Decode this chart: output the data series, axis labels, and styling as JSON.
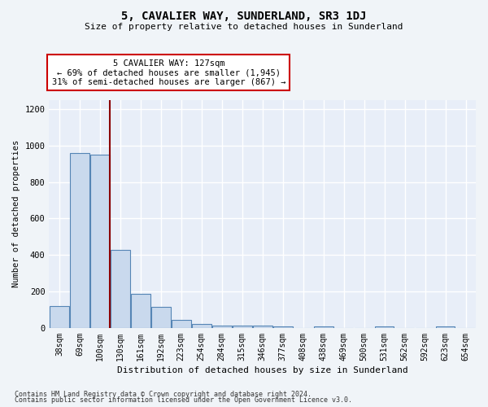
{
  "title": "5, CAVALIER WAY, SUNDERLAND, SR3 1DJ",
  "subtitle": "Size of property relative to detached houses in Sunderland",
  "xlabel": "Distribution of detached houses by size in Sunderland",
  "ylabel": "Number of detached properties",
  "footer_line1": "Contains HM Land Registry data © Crown copyright and database right 2024.",
  "footer_line2": "Contains public sector information licensed under the Open Government Licence v3.0.",
  "annotation_line1": "5 CAVALIER WAY: 127sqm",
  "annotation_line2": "← 69% of detached houses are smaller (1,945)",
  "annotation_line3": "31% of semi-detached houses are larger (867) →",
  "bar_color": "#c9d9ed",
  "bar_edge_color": "#5585b5",
  "vline_color": "#8b0000",
  "background_color": "#e8eef8",
  "grid_color": "#ffffff",
  "categories": [
    "38sqm",
    "69sqm",
    "100sqm",
    "130sqm",
    "161sqm",
    "192sqm",
    "223sqm",
    "254sqm",
    "284sqm",
    "315sqm",
    "346sqm",
    "377sqm",
    "408sqm",
    "438sqm",
    "469sqm",
    "500sqm",
    "531sqm",
    "562sqm",
    "592sqm",
    "623sqm",
    "654sqm"
  ],
  "values": [
    120,
    960,
    950,
    430,
    185,
    115,
    45,
    20,
    15,
    15,
    15,
    10,
    0,
    10,
    0,
    0,
    10,
    0,
    0,
    10,
    0
  ],
  "ylim": [
    0,
    1250
  ],
  "yticks": [
    0,
    200,
    400,
    600,
    800,
    1000,
    1200
  ]
}
